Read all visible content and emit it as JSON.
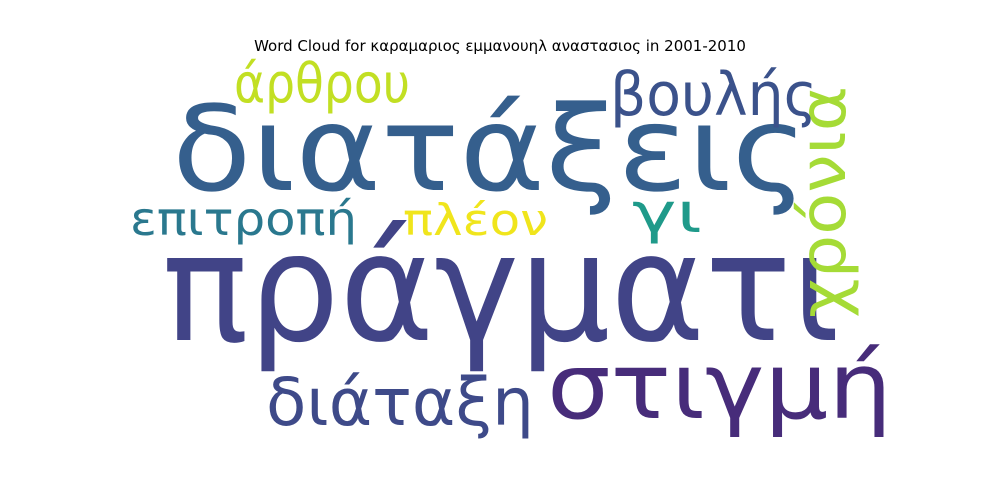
{
  "chart_data": {
    "type": "wordcloud",
    "title": "Word Cloud for καραμαριος εμμανουηλ αναστασιος in 2001-2010",
    "words": [
      {
        "text": "πράγματι",
        "color": "#414487"
      },
      {
        "text": "διατάξεις",
        "color": "#355f8d"
      },
      {
        "text": "στιγμή",
        "color": "#472c7a"
      },
      {
        "text": "διάταξη",
        "color": "#3e4a89"
      },
      {
        "text": "χρόνια",
        "color": "#a5db36"
      },
      {
        "text": "άρθρου",
        "color": "#c2df23"
      },
      {
        "text": "βουλής",
        "color": "#3b528b"
      },
      {
        "text": "επιτροπή",
        "color": "#2a788e"
      },
      {
        "text": "πλέον",
        "color": "#f0e51c"
      },
      {
        "text": "γι",
        "color": "#1f9a8a"
      }
    ]
  }
}
